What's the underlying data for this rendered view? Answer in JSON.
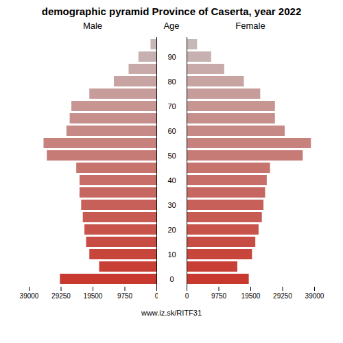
{
  "chart_data": {
    "type": "bar",
    "orientation": "horizontal",
    "title": "demographic pyramid Province of Caserta, year 2022",
    "ylabel": "Age",
    "annotations": [
      "www.iz.sk/RITF31"
    ],
    "categories": [
      "0",
      null,
      "10",
      null,
      "20",
      null,
      "30",
      null,
      "40",
      null,
      "50",
      null,
      "60",
      null,
      "70",
      null,
      "80",
      null,
      "90",
      null
    ],
    "series": [
      {
        "name": "Male",
        "values": [
          29500,
          17500,
          20500,
          21500,
          22000,
          22500,
          23000,
          23500,
          23500,
          24500,
          33500,
          34500,
          27500,
          26500,
          26000,
          20500,
          13000,
          8500,
          5500,
          1800
        ]
      },
      {
        "name": "Female",
        "values": [
          19000,
          15500,
          20000,
          21000,
          22000,
          23000,
          23500,
          24000,
          24500,
          25500,
          35500,
          38000,
          30000,
          27000,
          27000,
          22500,
          17500,
          11500,
          7500,
          3200
        ]
      }
    ],
    "colors": [
      "#c7382e",
      "#c73f35",
      "#c7463c",
      "#c74c44",
      "#c7534b",
      "#c75a52",
      "#c76059",
      "#c76761",
      "#c76e68",
      "#c7746f",
      "#c77b76",
      "#c7827e",
      "#c78985",
      "#c78f8c",
      "#c79693",
      "#c79d9b",
      "#c7a3a2",
      "#c7aaa9",
      "#c7b1b0",
      "#c7b8b8"
    ],
    "xlim": [
      0,
      39000
    ],
    "xticks": [
      0,
      9750,
      19500,
      29250,
      39000
    ],
    "grid": false
  }
}
